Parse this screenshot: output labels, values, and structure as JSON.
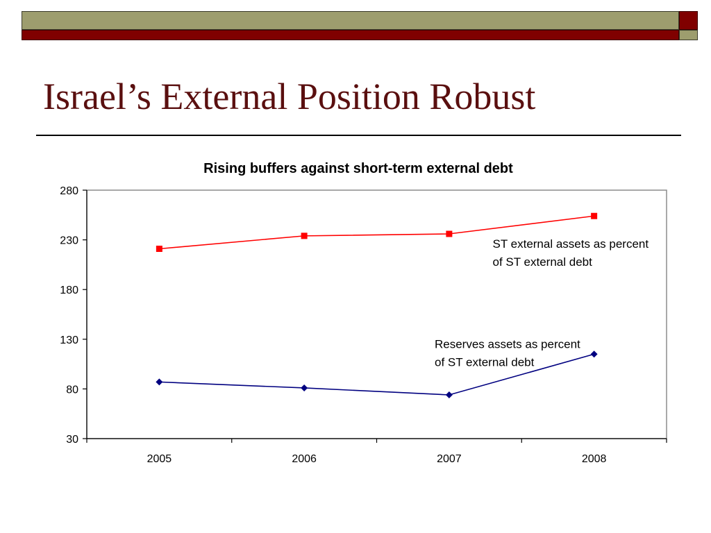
{
  "theme": {
    "olive": "#9d9d6e",
    "maroon": "#800000",
    "title_color": "#5a0f0f"
  },
  "slide": {
    "title": "Israel’s External Position Robust"
  },
  "chart_data": {
    "type": "line",
    "title": "Rising buffers against short-term external debt",
    "xlabel": "",
    "ylabel": "",
    "categories": [
      "2005",
      "2006",
      "2007",
      "2008"
    ],
    "ylim": [
      30,
      280
    ],
    "yticks": [
      30,
      80,
      130,
      180,
      230,
      280
    ],
    "grid": false,
    "series": [
      {
        "name": "ST external assets as percent of ST external debt",
        "values": [
          221,
          234,
          236,
          254
        ],
        "color": "#ff0000",
        "marker": "square",
        "label_lines": [
          "ST external assets as percent",
          "of ST external debt"
        ],
        "label_anchor": {
          "category": 2.8,
          "value": 222
        }
      },
      {
        "name": "Reserves assets as percent of ST external debt",
        "values": [
          87,
          81,
          74,
          115
        ],
        "color": "#000080",
        "marker": "diamond",
        "label_lines": [
          "Reserves assets as percent",
          "of ST external debt"
        ],
        "label_anchor": {
          "category": 2.4,
          "value": 121
        }
      }
    ]
  }
}
